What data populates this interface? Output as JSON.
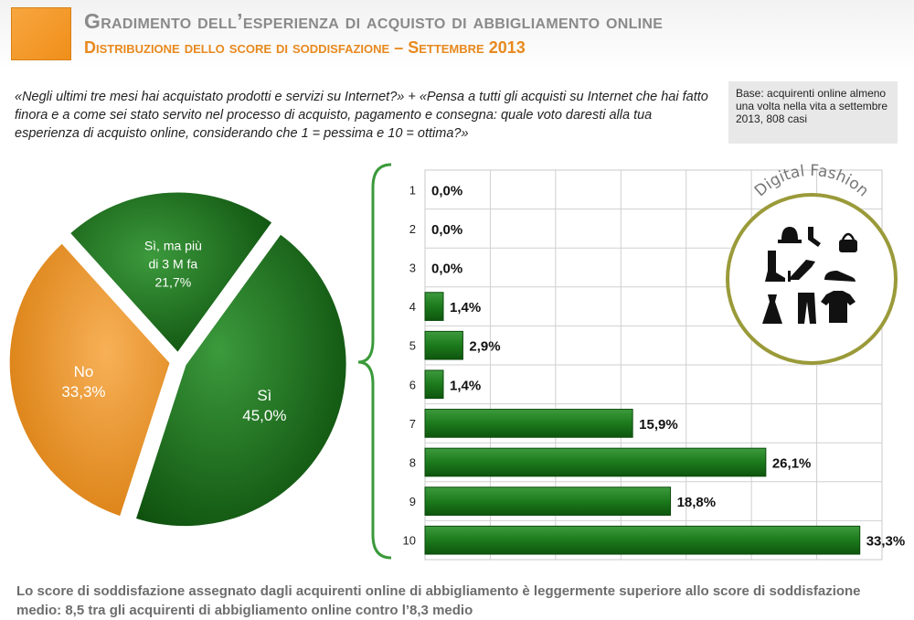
{
  "header": {
    "title": "Gradimento dell’esperienza di acquisto di abbigliamento online",
    "subtitle": "Distribuzione dello score di soddisfazione – Settembre 2013"
  },
  "question": "«Negli ultimi tre mesi hai acquistato prodotti e servizi su Internet?» + «Pensa a tutti gli acquisti su Internet che hai fatto finora e a come sei stato servito nel processo di acquisto, pagamento e consegna: quale voto daresti alla tua esperienza di acquisto online, considerando che 1 = pessima e 10 = ottima?»",
  "base_note": "Base: acquirenti online almeno una volta nella vita a settembre 2013, 808 casi",
  "badge": {
    "text": "Digital Fashion",
    "icons": [
      "hat-icon",
      "socks-icon",
      "handbag-icon",
      "boot-icon",
      "high-heel-icon",
      "shoe-icon",
      "dress-icon",
      "trousers-icon",
      "tshirt-icon"
    ]
  },
  "colors": {
    "green": "#1e7a1e",
    "green_dark": "#0d4f0d",
    "orange": "#f29a2e",
    "accent_orange": "#e8891e",
    "brace": "#3a9a3a",
    "badge_ring": "#9a9a3a"
  },
  "footer": "Lo score di soddisfazione assegnato dagli acquirenti online di abbigliamento è leggermente superiore allo score di soddisfazione medio: 8,5 tra gli acquirenti di abbigliamento online contro l’8,3 medio",
  "chart_data": [
    {
      "type": "pie",
      "slices": [
        {
          "label_lines": [
            "Sì",
            "45,0%"
          ],
          "value": 45.0,
          "color": "#1e7a1e"
        },
        {
          "label_lines": [
            "No",
            "33,3%"
          ],
          "value": 33.3,
          "color": "#f29a2e"
        },
        {
          "label_lines": [
            "Sì, ma più",
            "di 3 M fa",
            "21,7%"
          ],
          "value": 21.7,
          "color": "#1e7a1e"
        }
      ]
    },
    {
      "type": "bar",
      "orientation": "horizontal",
      "categories": [
        "1",
        "2",
        "3",
        "4",
        "5",
        "6",
        "7",
        "8",
        "9",
        "10"
      ],
      "values": [
        0.0,
        0.0,
        0.0,
        1.4,
        2.9,
        1.4,
        15.9,
        26.1,
        18.8,
        33.3
      ],
      "value_labels": [
        "0,0%",
        "0,0%",
        "0,0%",
        "1,4%",
        "2,9%",
        "1,4%",
        "15,9%",
        "26,1%",
        "18,8%",
        "33,3%"
      ],
      "xlim": [
        0,
        35
      ],
      "grid": true
    }
  ]
}
